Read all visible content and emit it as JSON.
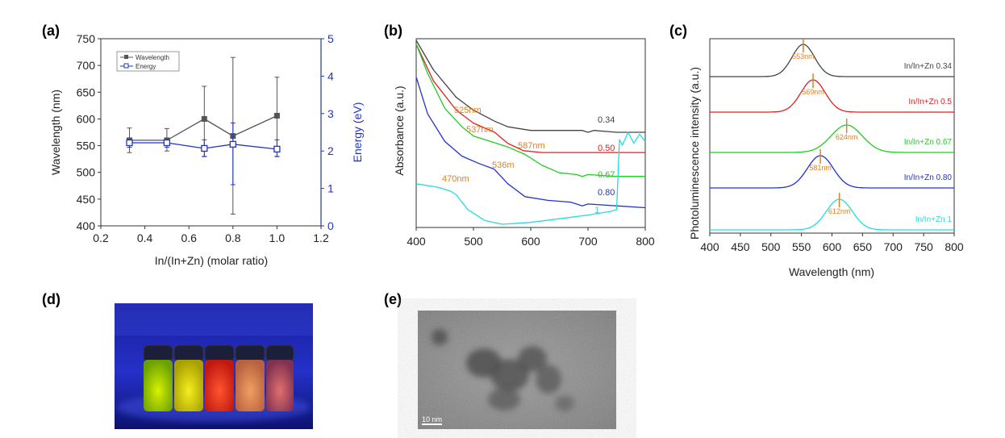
{
  "panels": {
    "a": "(a)",
    "b": "(b)",
    "c": "(c)",
    "d": "(d)",
    "e": "(e)"
  },
  "colors": {
    "wavelength": "#555555",
    "energy": "#2233cc",
    "s034": "#444444",
    "s050": "#dd2222",
    "s067": "#22cc22",
    "s080": "#2233cc",
    "s1": "#22dddd",
    "annot": "#e08020"
  },
  "chart_data": [
    {
      "type": "line",
      "panel": "a",
      "xlabel": "In/(In+Zn) (molar ratio)",
      "ylabel": "Wavelength (nm)",
      "y2label": "Energy (eV)",
      "xlim": [
        0.2,
        1.2
      ],
      "ylim": [
        400,
        750
      ],
      "y2lim": [
        0,
        5
      ],
      "xticks": [
        "0.2",
        "0.4",
        "0.6",
        "0.8",
        "1.0",
        "1.2"
      ],
      "yticks": [
        "400",
        "450",
        "500",
        "550",
        "600",
        "650",
        "700",
        "750"
      ],
      "y2ticks": [
        "0",
        "1",
        "2",
        "3",
        "4",
        "5"
      ],
      "legend_position": "top-left",
      "series": [
        {
          "name": "Wavelength",
          "axis": "left",
          "x": [
            0.33,
            0.5,
            0.67,
            0.8,
            1.0
          ],
          "y": [
            560,
            560,
            600,
            568,
            606
          ],
          "err_low": [
            537,
            540,
            530,
            422,
            530
          ],
          "err_high": [
            583,
            582,
            661,
            715,
            678
          ]
        },
        {
          "name": "Energy",
          "axis": "right",
          "x": [
            0.33,
            0.5,
            0.67,
            0.8,
            1.0
          ],
          "y": [
            2.22,
            2.22,
            2.07,
            2.18,
            2.05
          ],
          "err_low": [
            2.1,
            2.1,
            1.85,
            1.1,
            1.85
          ],
          "err_high": [
            2.3,
            2.3,
            2.3,
            2.75,
            2.3
          ]
        }
      ]
    },
    {
      "type": "line",
      "panel": "b",
      "xlabel": "",
      "ylabel": "Absorbance (a.u.)",
      "xlim": [
        400,
        800
      ],
      "xticks": [
        "400",
        "500",
        "600",
        "700",
        "800"
      ],
      "series": [
        {
          "label": "0.34",
          "x": [
            400,
            430,
            470,
            500,
            525,
            537,
            560,
            600,
            650,
            690,
            700,
            710,
            750,
            800
          ],
          "y": [
            1.0,
            0.84,
            0.69,
            0.62,
            0.58,
            0.56,
            0.53,
            0.51,
            0.51,
            0.51,
            0.5,
            0.51,
            0.5,
            0.5
          ],
          "peak_label": "525nm"
        },
        {
          "label": "0.50",
          "x": [
            400,
            430,
            470,
            500,
            537,
            560,
            587,
            620,
            650,
            700,
            750,
            800
          ],
          "y": [
            0.98,
            0.78,
            0.62,
            0.55,
            0.5,
            0.44,
            0.4,
            0.39,
            0.39,
            0.39,
            0.39,
            0.39
          ],
          "peak_label": "587nm",
          "peak2_label": "537nm"
        },
        {
          "label": "0.67",
          "x": [
            400,
            420,
            450,
            480,
            500,
            530,
            560,
            590,
            620,
            650,
            680,
            690,
            700,
            750,
            800
          ],
          "y": [
            0.98,
            0.82,
            0.63,
            0.53,
            0.48,
            0.45,
            0.42,
            0.38,
            0.32,
            0.28,
            0.27,
            0.26,
            0.27,
            0.26,
            0.26
          ],
          "peak_label": ""
        },
        {
          "label": "0.80",
          "x": [
            400,
            420,
            450,
            480,
            510,
            536,
            560,
            590,
            630,
            670,
            690,
            700,
            750,
            800
          ],
          "y": [
            0.8,
            0.6,
            0.45,
            0.37,
            0.33,
            0.3,
            0.22,
            0.15,
            0.13,
            0.12,
            0.1,
            0.11,
            0.1,
            0.09
          ],
          "peak_label": "536m"
        },
        {
          "label": "1",
          "x": [
            400,
            440,
            460,
            470,
            490,
            520,
            550,
            600,
            650,
            700,
            740,
            750,
            755,
            760,
            770,
            780,
            790,
            800
          ],
          "y": [
            0.22,
            0.2,
            0.18,
            0.16,
            0.08,
            0.02,
            0.0,
            0.01,
            0.03,
            0.05,
            0.07,
            0.08,
            0.46,
            0.43,
            0.5,
            0.44,
            0.49,
            0.45
          ],
          "peak_label": "470nm"
        }
      ]
    },
    {
      "type": "line",
      "panel": "c",
      "xlabel": "Wavelength (nm)",
      "ylabel": "Photoluminescence intensity (a.u.)",
      "xlim": [
        400,
        800
      ],
      "xticks": [
        "400",
        "450",
        "500",
        "550",
        "600",
        "650",
        "700",
        "750",
        "800"
      ],
      "series": [
        {
          "name": "In/In+Zn 0.34",
          "peak": 553,
          "peak_label": "553nm",
          "width": 26,
          "amp": 1.0
        },
        {
          "name": "In/In+Zn 0.5",
          "peak": 569,
          "peak_label": "569nm",
          "width": 28,
          "amp": 1.0
        },
        {
          "name": "In/In+Zn 0.67",
          "peak": 624,
          "peak_label": "624nm",
          "width": 36,
          "amp": 0.85
        },
        {
          "name": "In/In+Zn 0.80",
          "peak": 581,
          "peak_label": "581nm",
          "width": 30,
          "amp": 1.0
        },
        {
          "name": "In/In+Zn 1",
          "peak": 612,
          "peak_label": "612nm",
          "width": 30,
          "amp": 0.95
        }
      ]
    }
  ],
  "panel_e": {
    "scale_label": "10 nm"
  }
}
